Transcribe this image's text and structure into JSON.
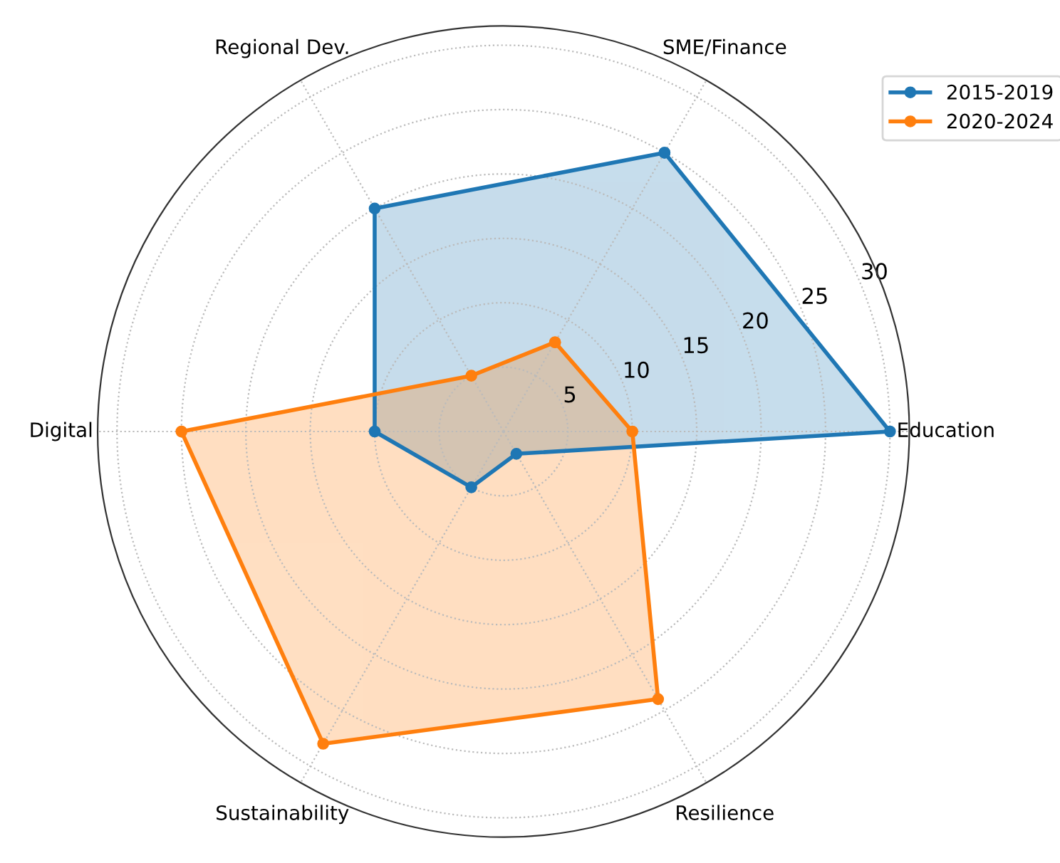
{
  "chart_data": {
    "type": "radar",
    "categories": [
      "SME/Finance",
      "Education",
      "Resilience",
      "Sustainability",
      "Digital",
      "Regional Dev."
    ],
    "series": [
      {
        "name": "2015-2019",
        "color": "#1f77b4",
        "values": [
          25,
          30,
          2,
          5,
          10,
          20
        ]
      },
      {
        "name": "2020-2024",
        "color": "#ff7f0e",
        "values": [
          8,
          10,
          24,
          28,
          25,
          5
        ]
      }
    ],
    "ylim": [
      0,
      31.5
    ],
    "yticks": [
      5,
      10,
      15,
      20,
      25,
      30
    ],
    "grid": true,
    "legend": "top right",
    "marker": "circle",
    "line_style": "solid"
  }
}
